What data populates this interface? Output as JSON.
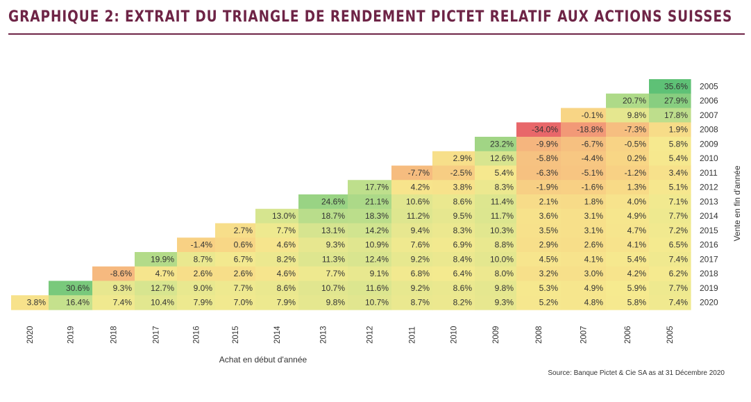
{
  "title": "GRAPHIQUE 2: EXTRAIT DU TRIANGLE DE RENDEMENT PICTET RELATIF AUX ACTIONS SUISSES",
  "source": "Source: Banque Pictet & Cie SA as at 31 Décembre 2020",
  "chart_data": {
    "type": "heatmap",
    "title": "GRAPHIQUE 2: EXTRAIT DU TRIANGLE DE RENDEMENT PICTET RELATIF AUX ACTIONS SUISSES",
    "xlabel": "Achat en début d'année",
    "ylabel": "Vente en fin d'année",
    "x_categories": [
      "2020",
      "2019",
      "2018",
      "2017",
      "2016",
      "2015",
      "2014",
      "2013",
      "2012",
      "2011",
      "2010",
      "2009",
      "2008",
      "2007",
      "2006",
      "2005"
    ],
    "y_categories": [
      "2005",
      "2006",
      "2007",
      "2008",
      "2009",
      "2010",
      "2011",
      "2012",
      "2013",
      "2014",
      "2015",
      "2016",
      "2017",
      "2018",
      "2019",
      "2020"
    ],
    "value_unit": "%",
    "color_scale": [
      "#e8676a",
      "#f4a57a",
      "#f8d585",
      "#f6ea8f",
      "#cde38f",
      "#5cc076"
    ],
    "values": [
      [
        null,
        null,
        null,
        null,
        null,
        null,
        null,
        null,
        null,
        null,
        null,
        null,
        null,
        null,
        null,
        35.6
      ],
      [
        null,
        null,
        null,
        null,
        null,
        null,
        null,
        null,
        null,
        null,
        null,
        null,
        null,
        null,
        20.7,
        27.9
      ],
      [
        null,
        null,
        null,
        null,
        null,
        null,
        null,
        null,
        null,
        null,
        null,
        null,
        null,
        -0.1,
        9.8,
        17.8
      ],
      [
        null,
        null,
        null,
        null,
        null,
        null,
        null,
        null,
        null,
        null,
        null,
        null,
        -34.0,
        -18.8,
        -7.3,
        1.9
      ],
      [
        null,
        null,
        null,
        null,
        null,
        null,
        null,
        null,
        null,
        null,
        null,
        23.2,
        -9.9,
        -6.7,
        -0.5,
        5.8
      ],
      [
        null,
        null,
        null,
        null,
        null,
        null,
        null,
        null,
        null,
        null,
        2.9,
        12.6,
        -5.8,
        -4.4,
        0.2,
        5.4
      ],
      [
        null,
        null,
        null,
        null,
        null,
        null,
        null,
        null,
        null,
        -7.7,
        -2.5,
        5.4,
        -6.3,
        -5.1,
        -1.2,
        3.4
      ],
      [
        null,
        null,
        null,
        null,
        null,
        null,
        null,
        null,
        17.7,
        4.2,
        3.8,
        8.3,
        -1.9,
        -1.6,
        1.3,
        5.1
      ],
      [
        null,
        null,
        null,
        null,
        null,
        null,
        null,
        24.6,
        21.1,
        10.6,
        8.6,
        11.4,
        2.1,
        1.8,
        4.0,
        7.1
      ],
      [
        null,
        null,
        null,
        null,
        null,
        null,
        13.0,
        18.7,
        18.3,
        11.2,
        9.5,
        11.7,
        3.6,
        3.1,
        4.9,
        7.7
      ],
      [
        null,
        null,
        null,
        null,
        null,
        2.7,
        7.7,
        13.1,
        14.2,
        9.4,
        8.3,
        10.3,
        3.5,
        3.1,
        4.7,
        7.2
      ],
      [
        null,
        null,
        null,
        null,
        -1.4,
        0.6,
        4.6,
        9.3,
        10.9,
        7.6,
        6.9,
        8.8,
        2.9,
        2.6,
        4.1,
        6.5
      ],
      [
        null,
        null,
        null,
        19.9,
        8.7,
        6.7,
        8.2,
        11.3,
        12.4,
        9.2,
        8.4,
        10.0,
        4.5,
        4.1,
        5.4,
        7.4
      ],
      [
        null,
        null,
        -8.6,
        4.7,
        2.6,
        2.6,
        4.6,
        7.7,
        9.1,
        6.8,
        6.4,
        8.0,
        3.2,
        3.0,
        4.2,
        6.2
      ],
      [
        null,
        30.6,
        9.3,
        12.7,
        9.0,
        7.7,
        8.6,
        10.7,
        11.6,
        9.2,
        8.6,
        9.8,
        5.3,
        4.9,
        5.9,
        7.7
      ],
      [
        3.8,
        16.4,
        7.4,
        10.4,
        7.9,
        7.0,
        7.9,
        9.8,
        10.7,
        8.7,
        8.2,
        9.3,
        5.2,
        4.8,
        5.8,
        7.4
      ]
    ]
  }
}
